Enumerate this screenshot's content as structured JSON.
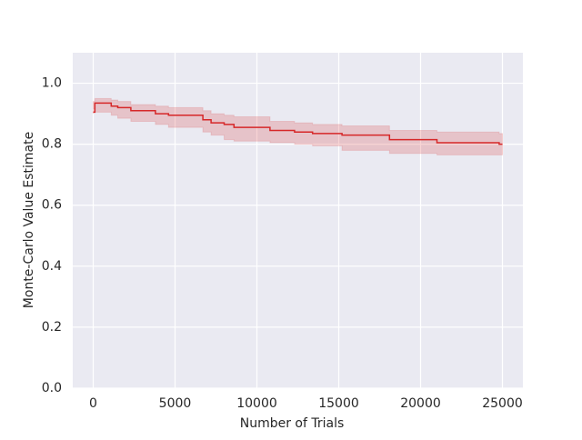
{
  "chart_data": {
    "type": "line",
    "drawstyle": "steps-post",
    "xlabel": "Number of Trials",
    "ylabel": "Monte-Carlo Value Estimate",
    "x": [
      0,
      100,
      1100,
      1500,
      2300,
      3800,
      4600,
      6700,
      7200,
      8000,
      8600,
      10800,
      12300,
      13400,
      15200,
      18100,
      21000,
      24800,
      25000
    ],
    "series": [
      {
        "color": "#d62728",
        "values": [
          0.905,
          0.935,
          0.925,
          0.92,
          0.91,
          0.9,
          0.895,
          0.88,
          0.87,
          0.865,
          0.855,
          0.845,
          0.84,
          0.835,
          0.83,
          0.815,
          0.805,
          0.8,
          0.8
        ],
        "lower": [
          0.9,
          0.915,
          0.905,
          0.895,
          0.885,
          0.875,
          0.865,
          0.855,
          0.84,
          0.83,
          0.815,
          0.81,
          0.805,
          0.8,
          0.795,
          0.78,
          0.77,
          0.765,
          0.765
        ],
        "upper": [
          0.94,
          0.95,
          0.945,
          0.94,
          0.93,
          0.925,
          0.92,
          0.91,
          0.9,
          0.895,
          0.89,
          0.875,
          0.87,
          0.865,
          0.86,
          0.845,
          0.84,
          0.835,
          0.835
        ]
      }
    ],
    "xlim": [
      -1250,
      26250
    ],
    "ylim": [
      0,
      1.1
    ],
    "xticks": [
      0,
      5000,
      10000,
      15000,
      20000,
      25000
    ],
    "yticks": [
      {
        "value": 0,
        "label": "0.0"
      },
      {
        "value": 0.2,
        "label": "0.2"
      },
      {
        "value": 0.4,
        "label": "0.4"
      },
      {
        "value": 0.6,
        "label": "0.6"
      },
      {
        "value": 0.8,
        "label": "0.8"
      },
      {
        "value": 1,
        "label": "1.0"
      }
    ],
    "grid": true
  }
}
